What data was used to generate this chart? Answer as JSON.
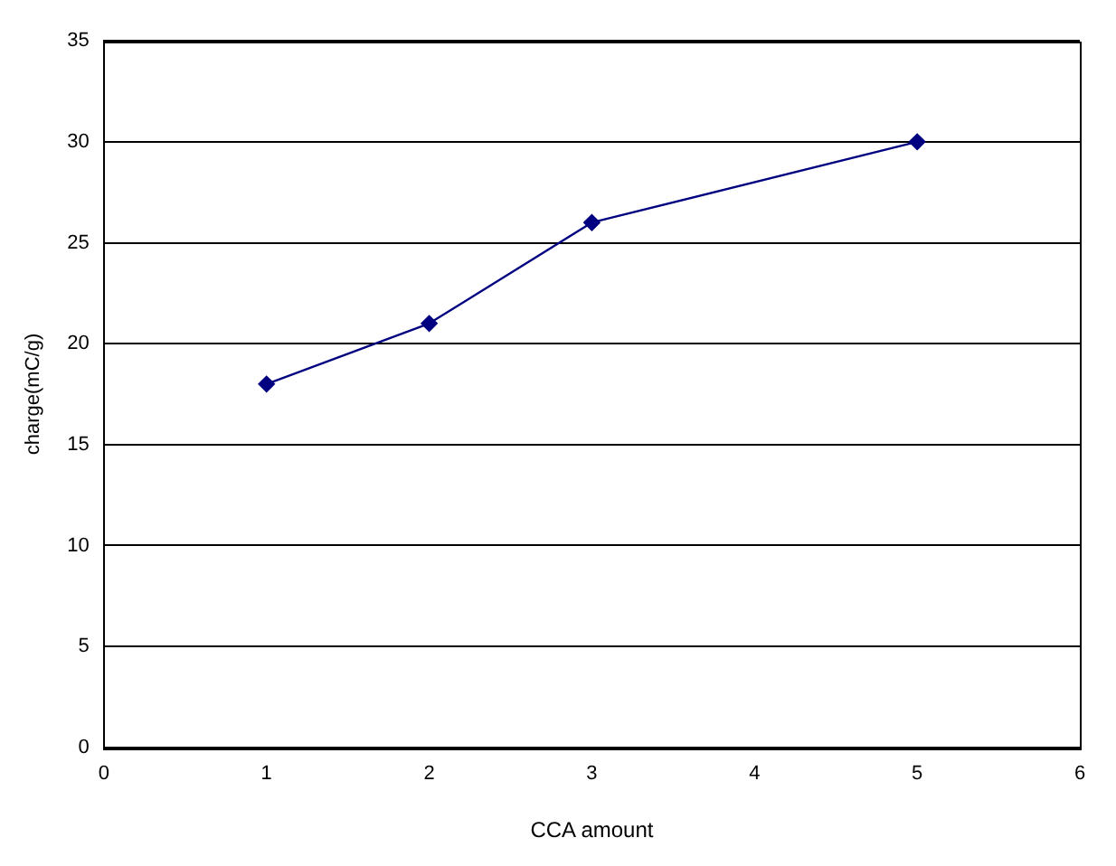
{
  "chart_data": {
    "type": "line",
    "xlabel": "CCA amount",
    "ylabel": "charge(mC/g)",
    "x": [
      1,
      2,
      3,
      5
    ],
    "series": [
      {
        "color": "#000080",
        "values": [
          18,
          21,
          26,
          30
        ]
      }
    ],
    "xlim": [
      0,
      6
    ],
    "xticks": [
      0,
      1,
      2,
      3,
      4,
      5,
      6
    ],
    "ylim": [
      0,
      35
    ],
    "yticks": [
      0,
      5,
      10,
      15,
      20,
      25,
      30,
      35
    ],
    "grid": "y",
    "legend": false,
    "marker": "diamond",
    "line_style": "solid"
  }
}
